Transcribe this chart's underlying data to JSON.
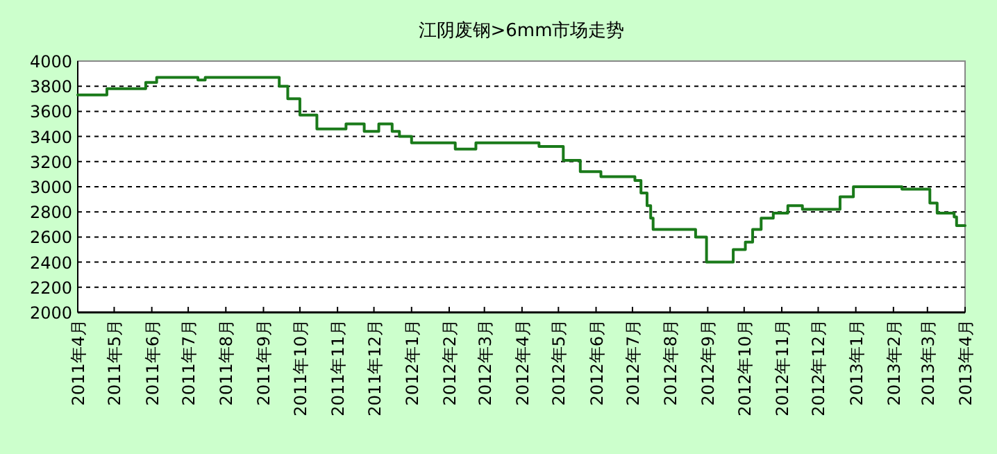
{
  "chart_data": {
    "type": "step",
    "title": "江阴废钢>6mm市场走势",
    "x": [
      "2011-04-01",
      "2011-04-25",
      "2011-05-27",
      "2011-06-05",
      "2011-07-09",
      "2011-07-15",
      "2011-09-14",
      "2011-09-21",
      "2011-10-01",
      "2011-10-15",
      "2011-11-08",
      "2011-11-23",
      "2011-12-05",
      "2011-12-16",
      "2011-12-22",
      "2012-01-01",
      "2012-02-06",
      "2012-02-23",
      "2012-04-15",
      "2012-05-05",
      "2012-05-19",
      "2012-06-05",
      "2012-07-03",
      "2012-07-08",
      "2012-07-13",
      "2012-07-16",
      "2012-07-18",
      "2012-08-22",
      "2012-08-31",
      "2012-09-22",
      "2012-10-02",
      "2012-10-08",
      "2012-10-15",
      "2012-10-25",
      "2012-11-06",
      "2012-11-18",
      "2012-12-19",
      "2012-12-30",
      "2013-02-08",
      "2013-03-03",
      "2013-03-09",
      "2013-03-23",
      "2013-03-25",
      "2013-04-01"
    ],
    "series": [
      {
        "color": "#1a7a1a",
        "values": [
          3730,
          3780,
          3830,
          3870,
          3850,
          3870,
          3800,
          3700,
          3570,
          3460,
          3500,
          3440,
          3500,
          3440,
          3400,
          3350,
          3300,
          3350,
          3320,
          3210,
          3120,
          3080,
          3050,
          2950,
          2850,
          2750,
          2660,
          2600,
          2400,
          2500,
          2560,
          2660,
          2750,
          2790,
          2850,
          2820,
          2920,
          3000,
          2980,
          2870,
          2790,
          2760,
          2690,
          2690
        ]
      }
    ],
    "xlim": [
      "2011-04-01",
      "2013-04-01"
    ],
    "xticks": [
      {
        "value": "2011-04-01",
        "label": "2011年4月"
      },
      {
        "value": "2011-05-01",
        "label": "2011年5月"
      },
      {
        "value": "2011-06-01",
        "label": "2011年6月"
      },
      {
        "value": "2011-07-01",
        "label": "2011年7月"
      },
      {
        "value": "2011-08-01",
        "label": "2011年8月"
      },
      {
        "value": "2011-09-01",
        "label": "2011年9月"
      },
      {
        "value": "2011-10-01",
        "label": "2011年10月"
      },
      {
        "value": "2011-11-01",
        "label": "2011年11月"
      },
      {
        "value": "2011-12-01",
        "label": "2011年12月"
      },
      {
        "value": "2012-01-01",
        "label": "2012年1月"
      },
      {
        "value": "2012-02-01",
        "label": "2012年2月"
      },
      {
        "value": "2012-03-01",
        "label": "2012年3月"
      },
      {
        "value": "2012-04-01",
        "label": "2012年4月"
      },
      {
        "value": "2012-05-01",
        "label": "2012年5月"
      },
      {
        "value": "2012-06-01",
        "label": "2012年6月"
      },
      {
        "value": "2012-07-01",
        "label": "2012年7月"
      },
      {
        "value": "2012-08-01",
        "label": "2012年8月"
      },
      {
        "value": "2012-09-01",
        "label": "2012年9月"
      },
      {
        "value": "2012-10-01",
        "label": "2012年10月"
      },
      {
        "value": "2012-11-01",
        "label": "2012年11月"
      },
      {
        "value": "2012-12-01",
        "label": "2012年12月"
      },
      {
        "value": "2013-01-01",
        "label": "2013年1月"
      },
      {
        "value": "2013-02-01",
        "label": "2013年2月"
      },
      {
        "value": "2013-03-01",
        "label": "2013年3月"
      },
      {
        "value": "2013-04-01",
        "label": "2013年4月"
      }
    ],
    "ylim": [
      2000,
      4000
    ],
    "yticks": [
      2000,
      2200,
      2400,
      2600,
      2800,
      3000,
      3200,
      3400,
      3600,
      3800,
      4000
    ],
    "grid": "y",
    "line_style": "solid"
  }
}
